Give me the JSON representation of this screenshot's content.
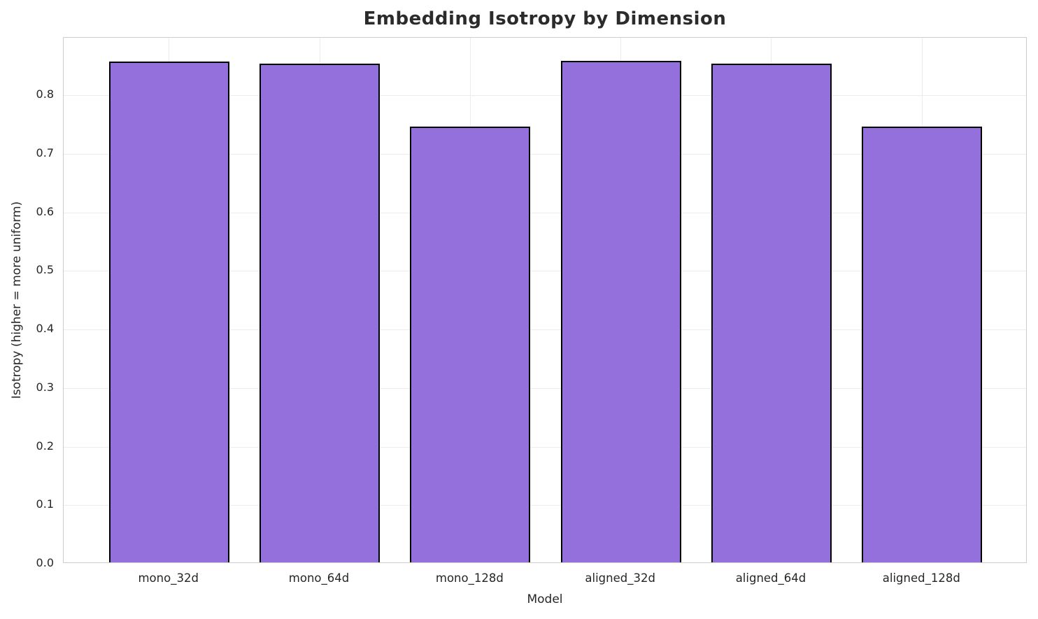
{
  "chart_data": {
    "type": "bar",
    "title": "Embedding Isotropy by Dimension",
    "xlabel": "Model",
    "ylabel": "Isotropy (higher = more uniform)",
    "categories": [
      "mono_32d",
      "mono_64d",
      "mono_128d",
      "aligned_32d",
      "aligned_64d",
      "aligned_128d"
    ],
    "values": [
      0.855,
      0.851,
      0.744,
      0.856,
      0.852,
      0.744
    ],
    "ylim": [
      0,
      0.898
    ],
    "xlim": [
      -0.7,
      5.7
    ],
    "yticks": [
      0.0,
      0.1,
      0.2,
      0.3,
      0.4,
      0.5,
      0.6,
      0.7,
      0.8
    ],
    "ytick_labels": [
      "0.0",
      "0.1",
      "0.2",
      "0.3",
      "0.4",
      "0.5",
      "0.6",
      "0.7",
      "0.8"
    ],
    "bar_width": 0.8,
    "grid": true,
    "legend_position": "none",
    "colors": {
      "bar_fill": "#9370DB",
      "bar_edge": "#000000",
      "grid": "#ececec",
      "spine": "#cccccc",
      "text": "#262626",
      "title": "#2b2b2b",
      "background": "#ffffff"
    }
  }
}
